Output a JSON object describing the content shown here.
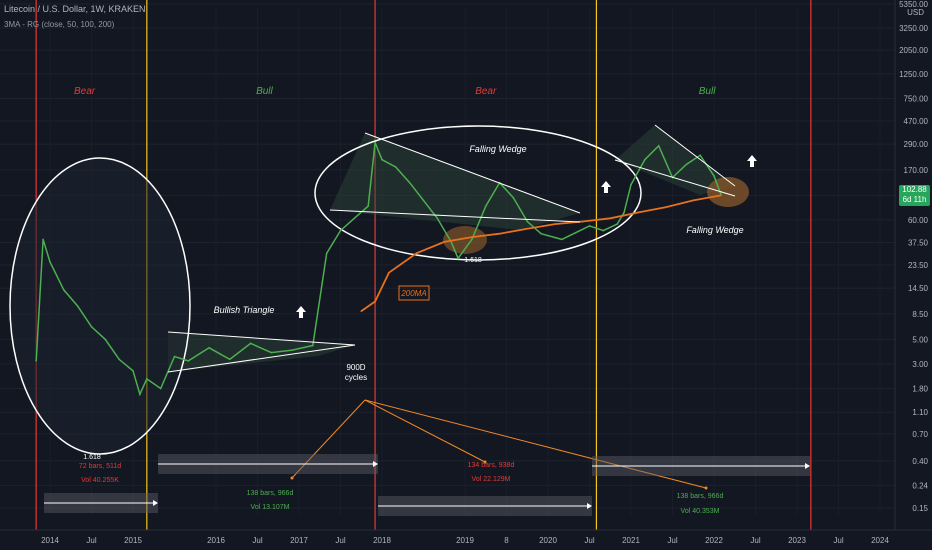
{
  "header": {
    "symbol": "Litecoin / U.S. Dollar, 1W, KRAKEN",
    "indicator": "3MA - RG (close, 50, 100, 200)",
    "currency": "USD"
  },
  "price_badge": {
    "price": "102.88",
    "countdown": "6d 11h"
  },
  "colors": {
    "background": "#131722",
    "price_line": "#4caf50",
    "ma200": "#e8711c",
    "bear_line": "#e53935",
    "bull_line": "#f5c518",
    "bear_text": "#e53935",
    "bull_text": "#4caf50",
    "annotation_white": "#ffffff",
    "projection_orange": "#f08a24",
    "badge_bg": "#26a65b"
  },
  "chart_data": {
    "type": "line",
    "y_scale": "log",
    "y_ticks": [
      "5350.00",
      "3250.00",
      "2050.00",
      "1250.00",
      "750.00",
      "470.00",
      "290.00",
      "170.00",
      "100.00",
      "60.00",
      "37.50",
      "23.50",
      "14.50",
      "8.50",
      "5.00",
      "3.00",
      "1.80",
      "1.10",
      "0.70",
      "0.40",
      "0.24",
      "0.15"
    ],
    "x_ticks": [
      "2014",
      "Jul",
      "2015",
      "2016",
      "Jul",
      "2017",
      "Jul",
      "2018",
      "2019",
      "8",
      "2020",
      "Jul",
      "2021",
      "Jul",
      "2022",
      "Jul",
      "2023",
      "Jul",
      "2024"
    ],
    "series": [
      {
        "name": "LTCUSD",
        "x": [
          "2013-11",
          "2013-12",
          "2014-01",
          "2014-03",
          "2014-05",
          "2014-07",
          "2014-09",
          "2014-11",
          "2015-01",
          "2015-02",
          "2015-03",
          "2015-05",
          "2015-07",
          "2015-09",
          "2015-12",
          "2016-03",
          "2016-06",
          "2016-09",
          "2016-12",
          "2017-03",
          "2017-05",
          "2017-07",
          "2017-09",
          "2017-11",
          "2017-12",
          "2018-01",
          "2018-03",
          "2018-05",
          "2018-07",
          "2018-09",
          "2018-11",
          "2018-12",
          "2019-02",
          "2019-04",
          "2019-06",
          "2019-08",
          "2019-10",
          "2019-12",
          "2020-03",
          "2020-05",
          "2020-07",
          "2020-09",
          "2020-11",
          "2020-12",
          "2021-01",
          "2021-03",
          "2021-05",
          "2021-07",
          "2021-09",
          "2021-11",
          "2022-01",
          "2022-02"
        ],
        "y": [
          3.2,
          40,
          25,
          14,
          10,
          6.5,
          5,
          3.3,
          2.6,
          1.6,
          2.2,
          1.8,
          3.5,
          3.2,
          4.2,
          3.3,
          4.6,
          3.8,
          4.0,
          4.4,
          30,
          48,
          62,
          80,
          300,
          210,
          180,
          130,
          90,
          62,
          38,
          27,
          40,
          80,
          130,
          95,
          58,
          45,
          40,
          46,
          53,
          48,
          55,
          70,
          125,
          210,
          280,
          145,
          190,
          230,
          150,
          102
        ]
      },
      {
        "name": "200MA",
        "x": [
          "2017-10",
          "2017-12",
          "2018-02",
          "2018-06",
          "2018-10",
          "2019-02",
          "2019-06",
          "2019-10",
          "2020-02",
          "2020-06",
          "2020-10",
          "2021-02",
          "2021-06",
          "2021-10",
          "2022-02"
        ],
        "y": [
          9.0,
          11.0,
          20,
          30,
          38,
          42,
          45,
          50,
          55,
          58,
          62,
          70,
          78,
          90,
          100
        ]
      }
    ],
    "cycle_labels": [
      {
        "title": "Bear"
      },
      {
        "title": "Bull"
      },
      {
        "title": "Bear"
      },
      {
        "title": "Bull"
      }
    ],
    "annotations": {
      "bullish_triangle": "Bullish Triangle",
      "falling_wedge_1": "Falling Wedge",
      "falling_wedge_2": "Falling Wedge",
      "ma_label": "200MA",
      "fib_1": "1.618",
      "fib_2": "1.618",
      "cycles": "900D\ncycles"
    },
    "range_stats": [
      {
        "bars": "72 bars, 511d",
        "vol": "Vol 40.255K"
      },
      {
        "bars": "138 bars, 966d",
        "vol": "Vol 13.107M"
      },
      {
        "bars": "134 bars, 938d",
        "vol": "Vol 22.129M"
      },
      {
        "bars": "138 bars, 966d",
        "vol": "Vol 40.353M"
      }
    ]
  }
}
